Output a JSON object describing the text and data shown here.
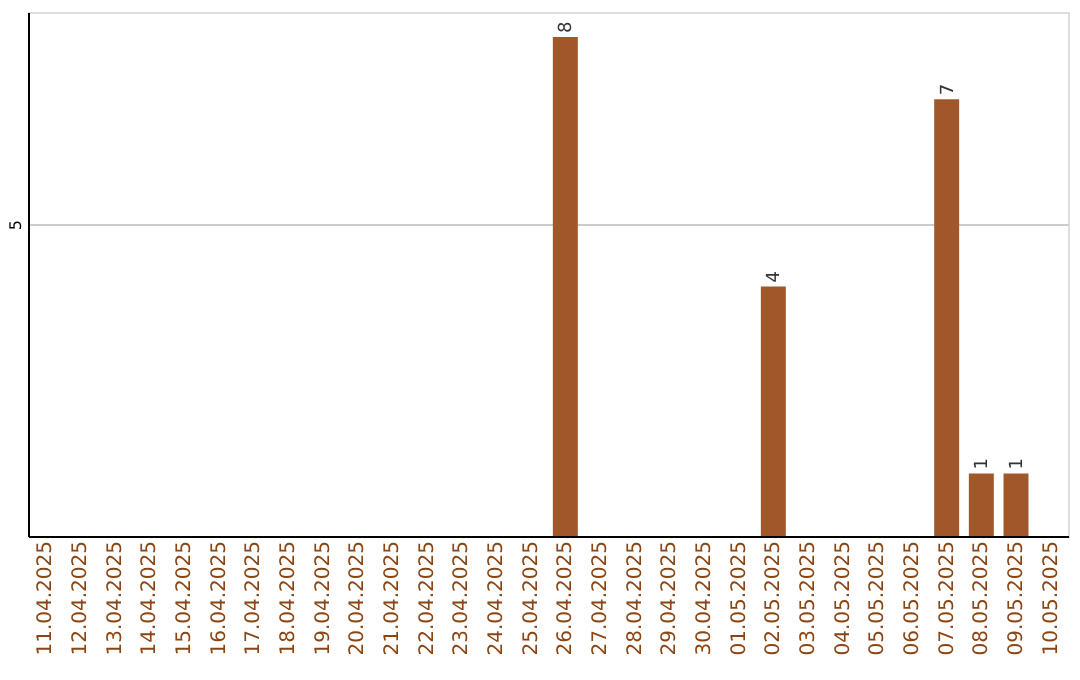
{
  "chart_data": {
    "type": "bar",
    "categories": [
      "11.04.2025",
      "12.04.2025",
      "13.04.2025",
      "14.04.2025",
      "15.04.2025",
      "16.04.2025",
      "17.04.2025",
      "18.04.2025",
      "19.04.2025",
      "20.04.2025",
      "21.04.2025",
      "22.04.2025",
      "23.04.2025",
      "24.04.2025",
      "25.04.2025",
      "26.04.2025",
      "27.04.2025",
      "28.04.2025",
      "29.04.2025",
      "30.04.2025",
      "01.05.2025",
      "02.05.2025",
      "03.05.2025",
      "04.05.2025",
      "05.05.2025",
      "06.05.2025",
      "07.05.2025",
      "08.05.2025",
      "09.05.2025",
      "10.05.2025"
    ],
    "values": [
      null,
      null,
      null,
      null,
      null,
      null,
      null,
      null,
      null,
      null,
      null,
      null,
      null,
      null,
      null,
      8,
      null,
      null,
      null,
      null,
      null,
      4,
      null,
      null,
      null,
      null,
      7,
      1,
      1,
      null
    ],
    "color": "#a0572a",
    "ylim": [
      0,
      8.4
    ],
    "yticks": [
      5
    ],
    "grid": "y",
    "data_labels": true
  }
}
